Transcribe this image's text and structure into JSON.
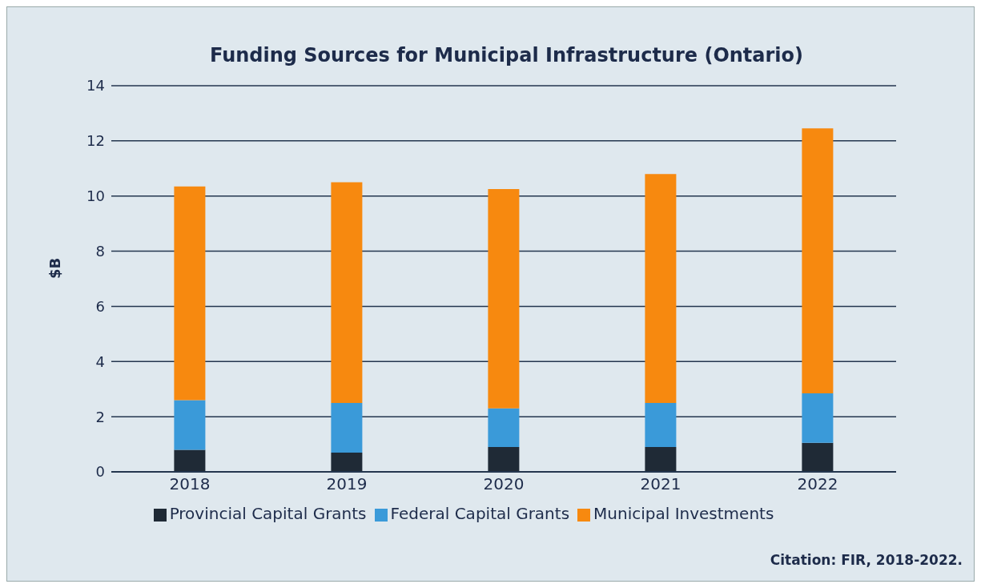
{
  "chart_data": {
    "type": "bar",
    "title": "Funding Sources for Municipal Infrastructure (Ontario)",
    "ylabel": "$B",
    "categories": [
      "2018",
      "2019",
      "2020",
      "2021",
      "2022"
    ],
    "stacked": true,
    "series": [
      {
        "name": "Provincial Capital Grants",
        "color": "#1f2a36",
        "values": [
          0.8,
          0.7,
          0.9,
          0.9,
          1.05
        ]
      },
      {
        "name": "Federal Capital Grants",
        "color": "#3a9ad9",
        "values": [
          1.8,
          1.8,
          1.4,
          1.6,
          1.8
        ]
      },
      {
        "name": "Municipal Investments",
        "color": "#f7890f",
        "values": [
          7.75,
          8.0,
          7.95,
          8.3,
          9.6
        ]
      }
    ],
    "ylim": [
      0,
      14
    ],
    "yticks": [
      0,
      2,
      4,
      6,
      8,
      10,
      12,
      14
    ],
    "grid": "y",
    "legend": "bottom",
    "annotations": [
      "Citation: FIR, 2018-2022."
    ]
  }
}
